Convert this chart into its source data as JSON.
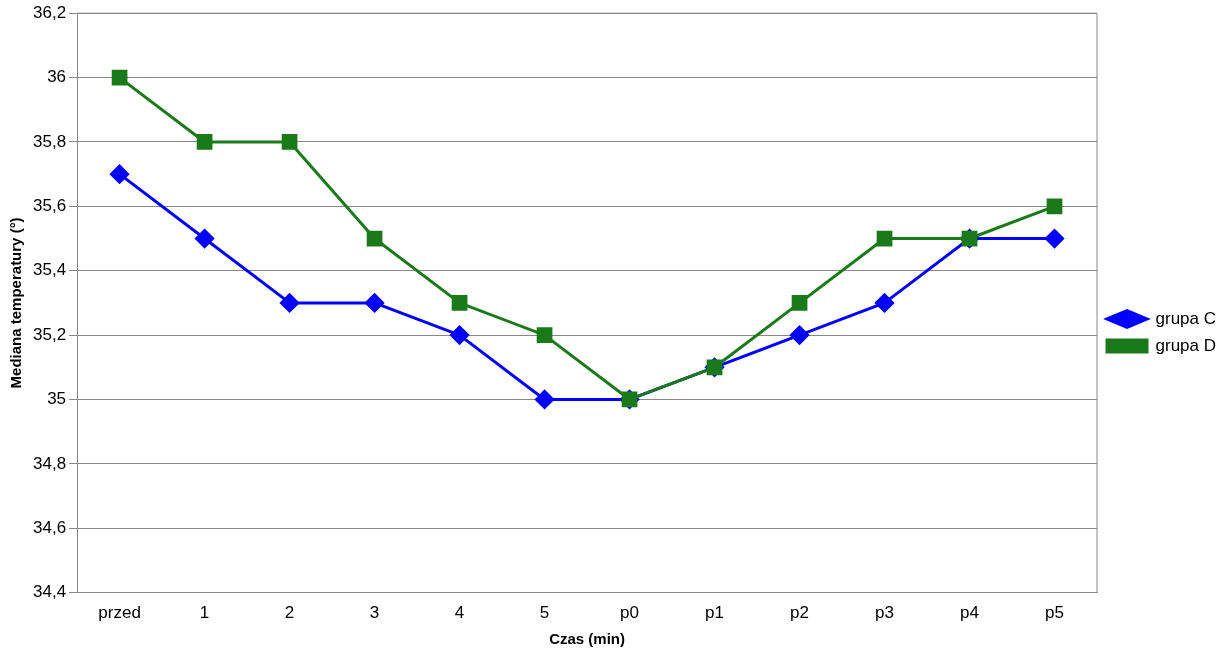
{
  "chart_data": {
    "type": "line",
    "xlabel": "Czas (min)",
    "ylabel": "Mediana temperatury (°)",
    "categories": [
      "przed",
      "1",
      "2",
      "3",
      "4",
      "5",
      "p0",
      "p1",
      "p2",
      "p3",
      "p4",
      "p5"
    ],
    "series": [
      {
        "name": "grupa C",
        "color": "#0000ff",
        "marker": "diamond",
        "values": [
          35.7,
          35.5,
          35.3,
          35.3,
          35.2,
          35.0,
          35.0,
          35.1,
          35.2,
          35.3,
          35.5,
          35.5
        ]
      },
      {
        "name": "grupa D",
        "color": "#1a7a1a",
        "marker": "square",
        "values": [
          36.0,
          35.8,
          35.8,
          35.5,
          35.3,
          35.2,
          35.0,
          35.1,
          35.3,
          35.5,
          35.5,
          35.6
        ]
      }
    ],
    "ylim": [
      34.4,
      36.2
    ],
    "yticks": [
      {
        "value": 34.4,
        "label": "34,4"
      },
      {
        "value": 34.6,
        "label": "34,6"
      },
      {
        "value": 34.8,
        "label": "34,8"
      },
      35,
      {
        "value": 35.2,
        "label": "35,2"
      },
      {
        "value": 35.4,
        "label": "35,4"
      },
      {
        "value": 35.6,
        "label": "35,6"
      },
      {
        "value": 35.8,
        "label": "35,8"
      },
      36,
      {
        "value": 36.2,
        "label": "36,2"
      }
    ],
    "grid": "y",
    "legend": "right",
    "line_style": "solid"
  }
}
